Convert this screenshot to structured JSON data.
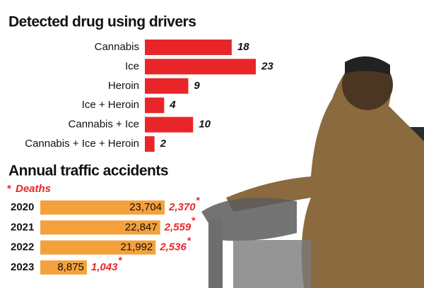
{
  "chart_data": [
    {
      "type": "bar",
      "orientation": "horizontal",
      "title": "Detected drug using drivers",
      "categories": [
        "Cannabis",
        "Ice",
        "Heroin",
        "Ice + Heroin",
        "Cannabis + Ice",
        "Cannabis + Ice + Heroin"
      ],
      "values": [
        18,
        23,
        9,
        4,
        10,
        2
      ],
      "color": "#e8262a"
    },
    {
      "type": "bar",
      "orientation": "horizontal",
      "title": "Annual traffic accidents",
      "categories": [
        "2020",
        "2021",
        "2022",
        "2023"
      ],
      "values": [
        23704,
        22847,
        21992,
        8875
      ],
      "value_labels": [
        "23,704",
        "22,847",
        "21,992",
        "8,875"
      ],
      "color": "#f5a13b",
      "deaths": {
        "name": "Deaths",
        "marker": "*",
        "color": "#e8262a",
        "values": [
          2370,
          2559,
          2536,
          1043
        ],
        "value_labels": [
          "2,370",
          "2,559",
          "2,536",
          "1,043"
        ]
      }
    }
  ]
}
